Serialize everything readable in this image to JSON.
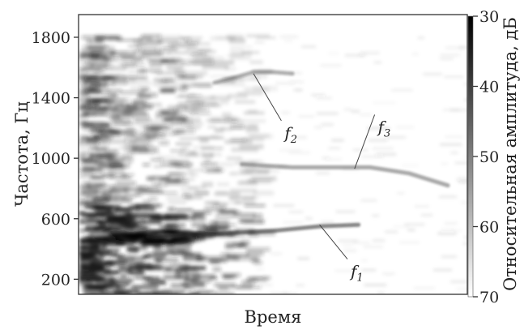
{
  "chart_data": {
    "type": "heatmap",
    "title": "",
    "xlabel": "Время",
    "ylabel": "Частота, Гц",
    "colorbar_label": "Относительная амплитуда, дБ",
    "yticks": [
      200,
      600,
      1000,
      1400,
      1800
    ],
    "ylim": [
      100,
      1950
    ],
    "colorbar_ticks": [
      30,
      40,
      50,
      60,
      70
    ],
    "colorbar_range": [
      30,
      70
    ],
    "x_tick_labels_shown": false,
    "colormap": [
      "#000000",
      "#ffffff"
    ],
    "annotations": [
      {
        "base": "f",
        "sub": "1",
        "points_to": {
          "x": 0.62,
          "y": 560
        }
      },
      {
        "base": "f",
        "sub": "2",
        "points_to": {
          "x": 0.45,
          "y": 1560
        }
      },
      {
        "base": "f",
        "sub": "3",
        "points_to": {
          "x": 0.71,
          "y": 930
        }
      }
    ],
    "tracks": [
      {
        "label": "f1",
        "x": [
          0.18,
          0.35,
          0.5,
          0.62,
          0.72
        ],
        "y": [
          480,
          500,
          520,
          550,
          560
        ],
        "level": 0.55
      },
      {
        "label": "f2",
        "x": [
          0.35,
          0.41,
          0.45,
          0.5,
          0.55
        ],
        "y": [
          1500,
          1540,
          1570,
          1570,
          1560
        ],
        "level": 0.35
      },
      {
        "label": "f3",
        "x": [
          0.42,
          0.55,
          0.68,
          0.75,
          0.85,
          0.95
        ],
        "y": [
          960,
          940,
          940,
          940,
          900,
          820
        ],
        "level": 0.4
      }
    ]
  }
}
